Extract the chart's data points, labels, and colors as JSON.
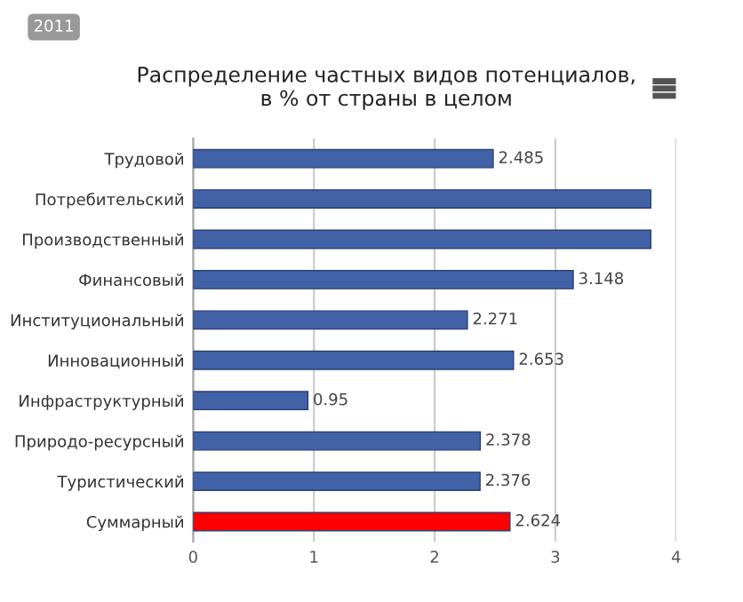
{
  "chart_data": {
    "type": "bar",
    "orientation": "horizontal",
    "title": "Распределение частных видов потенциалов,\nв % от страны в целом",
    "categories": [
      "Трудовой",
      "Потребительский",
      "Производственный",
      "Финансовый",
      "Институциональный",
      "Инновационный",
      "Инфраструктурный",
      "Природо-ресурсный",
      "Туристический",
      "Суммарный"
    ],
    "values": [
      2.485,
      3.79,
      3.79,
      3.148,
      2.271,
      2.653,
      0.95,
      2.378,
      2.376,
      2.624
    ],
    "value_labels": [
      "2.485",
      null,
      null,
      "3.148",
      "2.271",
      "2.653",
      "0.95",
      "2.378",
      "2.376",
      "2.624"
    ],
    "colors": [
      "#4262a8",
      "#4262a8",
      "#4262a8",
      "#4262a8",
      "#4262a8",
      "#4262a8",
      "#4262a8",
      "#4262a8",
      "#4262a8",
      "#ff0000"
    ],
    "xlim": [
      0,
      4
    ],
    "xticks": [
      0,
      1,
      2,
      3,
      4
    ],
    "grid": "x",
    "annotations": [
      "2011"
    ]
  }
}
